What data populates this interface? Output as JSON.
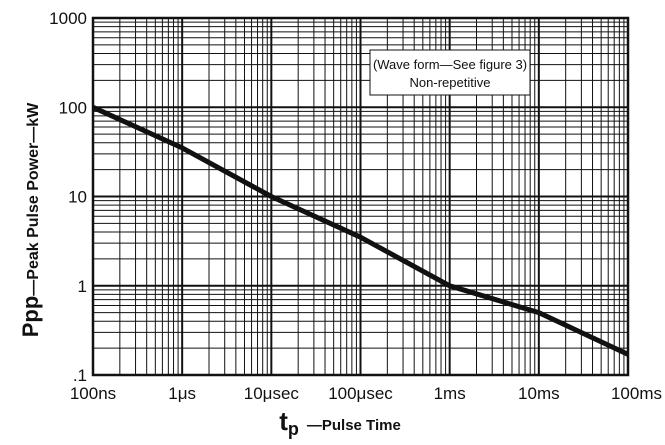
{
  "chart_data": {
    "type": "line",
    "x_scale": "log",
    "y_scale": "log",
    "x_ticks": [
      "100ns",
      "1μs",
      "10μsec",
      "100μsec",
      "1ms",
      "10ms",
      "100ms"
    ],
    "y_ticks": [
      "1000",
      "100",
      "10",
      "1",
      ".1"
    ],
    "xlim": [
      "100ns",
      "100ms"
    ],
    "ylim": [
      0.1,
      1000
    ],
    "grid": true,
    "x_unit_seconds": [
      1e-07,
      0.1
    ],
    "series": [
      {
        "x_seconds": [
          1e-07,
          1e-06,
          1e-05,
          0.0001,
          0.001,
          0.01,
          0.1
        ],
        "values_kW": [
          100,
          35,
          10,
          3.5,
          1.0,
          0.5,
          0.17
        ]
      }
    ],
    "ylabel": {
      "main": "Ppp",
      "suffix": "—Peak Pulse Power—kW"
    },
    "xlabel": {
      "main": "t",
      "sub": "p",
      "suffix": "—Pulse Time"
    },
    "annotation": [
      "(Wave form—See figure 3)",
      "Non-repetitive"
    ]
  }
}
